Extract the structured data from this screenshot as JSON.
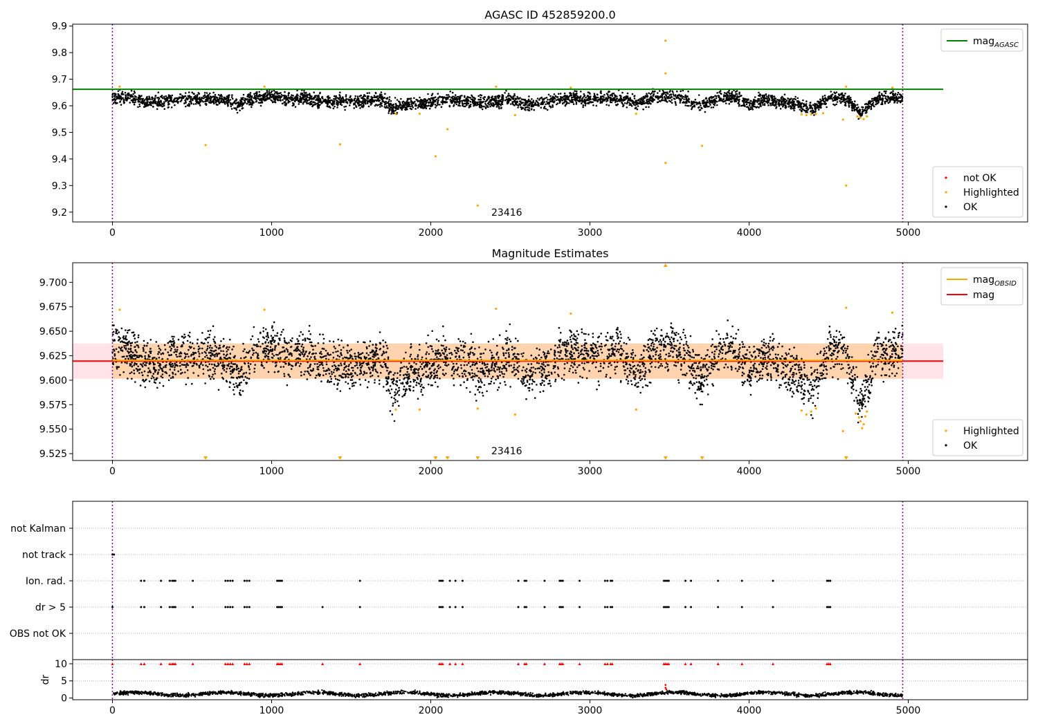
{
  "chart_data": [
    {
      "type": "scatter",
      "title": "AGASC ID 452859200.0",
      "xlim": [
        -250,
        5750
      ],
      "ylim": [
        9.163,
        9.907
      ],
      "xticks": [
        "0",
        "1000",
        "2000",
        "3000",
        "4000",
        "5000"
      ],
      "yticks": [
        "9.2",
        "9.3",
        "9.4",
        "9.5",
        "9.6",
        "9.7",
        "9.8",
        "9.9"
      ],
      "annotation": "23416",
      "mag_agasc": 9.662,
      "vlines_x": [
        0,
        4965
      ],
      "legend_lines": [
        {
          "name": "mag",
          "sub": "AGASC",
          "color": "#008000"
        }
      ],
      "legend_points": [
        {
          "name": "not OK",
          "color": "#ff0000"
        },
        {
          "name": "Highlighted",
          "color": "#ffa500"
        },
        {
          "name": "OK",
          "color": "#000000"
        }
      ],
      "series": [
        {
          "name": "Highlighted",
          "color": "#ffa500",
          "x": [
            45,
            585,
            955,
            1430,
            1780,
            1930,
            2030,
            2105,
            2295,
            2410,
            2530,
            2880,
            3290,
            3475,
            3475,
            3475,
            3705,
            4330,
            4360,
            4390,
            4420,
            4465,
            4590,
            4610,
            4610,
            4680,
            4700,
            4720,
            4740,
            4900
          ],
          "y": [
            9.672,
            9.452,
            9.672,
            9.455,
            9.57,
            9.57,
            9.41,
            9.512,
            9.225,
            9.672,
            9.565,
            9.668,
            9.57,
            9.722,
            9.845,
            9.385,
            9.449,
            9.568,
            9.565,
            9.568,
            9.569,
            9.572,
            9.548,
            9.672,
            9.3,
            9.56,
            9.555,
            9.55,
            9.56,
            9.668
          ]
        }
      ],
      "ok_baseline": {
        "x": [
          0,
          100,
          200,
          300,
          400,
          500,
          600,
          700,
          800,
          900,
          1000,
          1100,
          1200,
          1300,
          1400,
          1500,
          1600,
          1700,
          1760,
          1800,
          1900,
          2000,
          2100,
          2200,
          2300,
          2400,
          2500,
          2600,
          2700,
          2800,
          2900,
          3000,
          3100,
          3200,
          3300,
          3400,
          3500,
          3600,
          3700,
          3800,
          3900,
          4000,
          4100,
          4200,
          4300,
          4400,
          4500,
          4600,
          4700,
          4800,
          4965
        ],
        "y": [
          9.635,
          9.63,
          9.615,
          9.615,
          9.625,
          9.625,
          9.625,
          9.62,
          9.605,
          9.63,
          9.635,
          9.625,
          9.63,
          9.62,
          9.615,
          9.615,
          9.62,
          9.625,
          9.59,
          9.6,
          9.61,
          9.615,
          9.625,
          9.62,
          9.61,
          9.615,
          9.625,
          9.605,
          9.61,
          9.625,
          9.63,
          9.625,
          9.63,
          9.625,
          9.61,
          9.63,
          9.635,
          9.625,
          9.6,
          9.63,
          9.635,
          9.605,
          9.625,
          9.615,
          9.605,
          9.59,
          9.63,
          9.63,
          9.575,
          9.625,
          9.63
        ]
      }
    },
    {
      "type": "scatter",
      "title": "Magnitude Estimates",
      "xlim": [
        -250,
        5750
      ],
      "ylim": [
        9.518,
        9.72
      ],
      "xticks": [
        "0",
        "1000",
        "2000",
        "3000",
        "4000",
        "5000"
      ],
      "yticks": [
        "9.525",
        "9.550",
        "9.575",
        "9.600",
        "9.625",
        "9.650",
        "9.675",
        "9.700"
      ],
      "annotation": "23416",
      "mag": 9.6195,
      "mag_band": [
        9.6015,
        9.6375
      ],
      "vlines_x": [
        0,
        4965
      ],
      "legend_lines": [
        {
          "name": "mag",
          "sub": "OBSID",
          "color": "#ffa500"
        },
        {
          "name": "mag",
          "sub": "",
          "color": "#ff0000"
        }
      ],
      "legend_points": [
        {
          "name": "Highlighted",
          "color": "#ffa500"
        },
        {
          "name": "OK",
          "color": "#000000"
        }
      ],
      "series": [
        {
          "name": "Highlighted",
          "color": "#ffa500",
          "x": [
            45,
            955,
            1780,
            1930,
            2295,
            2410,
            2530,
            2880,
            3290,
            4330,
            4360,
            4390,
            4420,
            4590,
            4610,
            4670,
            4690,
            4700,
            4710,
            4720,
            4730,
            4740,
            4900
          ],
          "y": [
            9.672,
            9.672,
            9.57,
            9.57,
            9.571,
            9.673,
            9.565,
            9.668,
            9.57,
            9.569,
            9.565,
            9.568,
            9.571,
            9.548,
            9.674,
            9.566,
            9.562,
            9.558,
            9.551,
            9.555,
            9.563,
            9.568,
            9.669
          ]
        }
      ],
      "markers_down_x": [
        585,
        1430,
        2030,
        2105,
        2295,
        3475,
        3705,
        4610
      ],
      "markers_up_x": [
        3475
      ],
      "ok_baseline": {
        "x": [
          0,
          100,
          200,
          300,
          400,
          500,
          600,
          700,
          800,
          900,
          1000,
          1100,
          1200,
          1300,
          1400,
          1500,
          1600,
          1700,
          1760,
          1800,
          1900,
          2000,
          2100,
          2200,
          2300,
          2400,
          2500,
          2600,
          2700,
          2800,
          2900,
          3000,
          3100,
          3200,
          3300,
          3400,
          3500,
          3600,
          3700,
          3800,
          3900,
          4000,
          4100,
          4200,
          4300,
          4400,
          4500,
          4600,
          4700,
          4800,
          4965
        ],
        "y": [
          9.635,
          9.63,
          9.615,
          9.615,
          9.625,
          9.625,
          9.625,
          9.62,
          9.605,
          9.63,
          9.635,
          9.625,
          9.63,
          9.62,
          9.615,
          9.615,
          9.62,
          9.625,
          9.59,
          9.6,
          9.61,
          9.615,
          9.625,
          9.62,
          9.61,
          9.615,
          9.625,
          9.605,
          9.61,
          9.625,
          9.63,
          9.625,
          9.63,
          9.625,
          9.61,
          9.63,
          9.635,
          9.625,
          9.6,
          9.63,
          9.635,
          9.605,
          9.625,
          9.615,
          9.605,
          9.59,
          9.63,
          9.63,
          9.575,
          9.625,
          9.63
        ]
      }
    },
    {
      "type": "scatter",
      "title": "",
      "xlim": [
        -250,
        5750
      ],
      "categories": [
        "not Kalman",
        "not track",
        "Ion. rad.",
        "dr > 5",
        "OBS not OK"
      ],
      "vlines_x": [
        0,
        4965
      ],
      "flags": {
        "not track": [
          0,
          10
        ],
        "Ion. rad.": [
          180,
          200,
          305,
          360,
          375,
          385,
          395,
          505,
          710,
          725,
          740,
          755,
          830,
          845,
          860,
          1035,
          1045,
          1055,
          1065,
          1555,
          2055,
          2065,
          2075,
          2120,
          2155,
          2200,
          2550,
          2590,
          2600,
          2715,
          2810,
          2820,
          2830,
          2935,
          3095,
          3110,
          3130,
          3140,
          3465,
          3475,
          3485,
          3495,
          3600,
          3635,
          3805,
          3955,
          4150,
          4490,
          4500,
          4510
        ],
        "dr > 5": [
          0,
          180,
          200,
          305,
          360,
          375,
          385,
          395,
          505,
          710,
          725,
          740,
          755,
          830,
          845,
          860,
          1035,
          1045,
          1055,
          1065,
          1320,
          1555,
          2055,
          2065,
          2075,
          2120,
          2155,
          2200,
          2550,
          2590,
          2600,
          2715,
          2810,
          2820,
          2830,
          2935,
          3095,
          3110,
          3130,
          3140,
          3465,
          3475,
          3485,
          3495,
          3600,
          3635,
          3805,
          3955,
          4150,
          4490,
          4500,
          4510
        ]
      }
    },
    {
      "type": "scatter",
      "title": "",
      "ylabel": "dr",
      "xlim": [
        -250,
        5750
      ],
      "ylim": [
        -0.5,
        11.2
      ],
      "xticks": [
        "0",
        "1000",
        "2000",
        "3000",
        "4000",
        "5000"
      ],
      "yticks": [
        "0",
        "5",
        "10"
      ],
      "red_x": [
        0,
        180,
        200,
        305,
        360,
        375,
        385,
        395,
        505,
        710,
        725,
        740,
        755,
        830,
        845,
        860,
        1035,
        1045,
        1055,
        1065,
        1320,
        1555,
        2055,
        2065,
        2075,
        2120,
        2155,
        2200,
        2550,
        2590,
        2600,
        2715,
        2810,
        2820,
        2830,
        2935,
        3095,
        3110,
        3130,
        3140,
        3465,
        3475,
        3485,
        3495,
        3600,
        3635,
        3805,
        3955,
        4150,
        4490,
        4500,
        4510
      ],
      "red_level": 10,
      "outliers": {
        "x": [
          3475,
          3475,
          3480
        ],
        "y": [
          3.8,
          3.0,
          2.5
        ]
      },
      "vlines_x": [
        0,
        4965
      ]
    }
  ]
}
